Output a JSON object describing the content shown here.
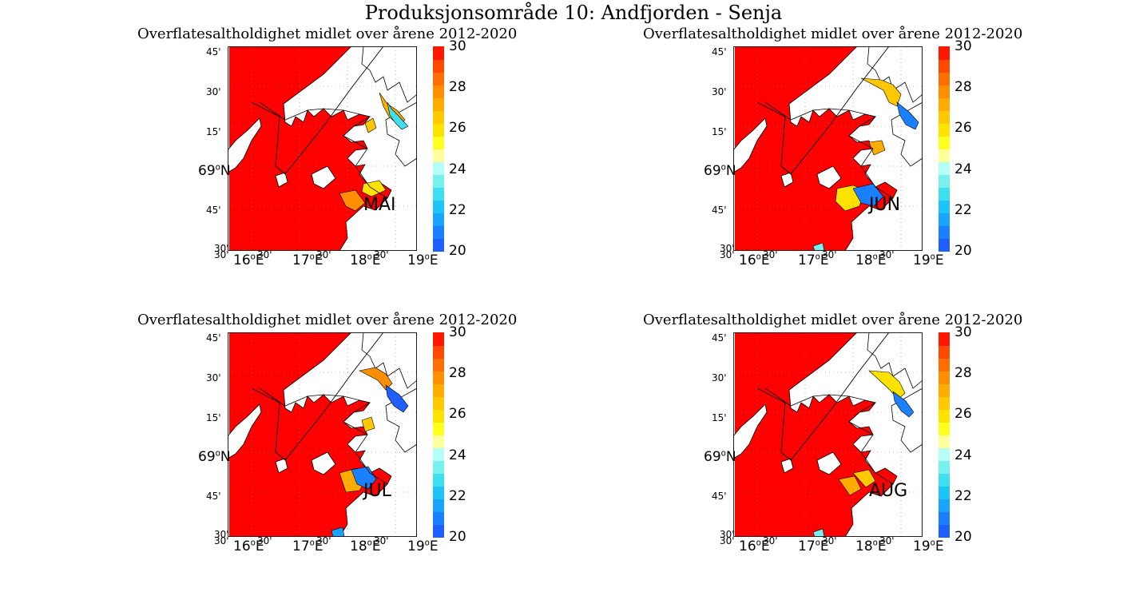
{
  "title": "Produksjonsområde 10: Andfjorden - Senja",
  "colors": {
    "sea_high": "#ff0000",
    "land": "#ffffff",
    "coast": "#000000",
    "colorbar": [
      "#1f5fff",
      "#1b80ff",
      "#18a4ff",
      "#1ec3f8",
      "#3fdff0",
      "#78f0ee",
      "#b4fff8",
      "#ffff9b",
      "#ffff20",
      "#ffe300",
      "#ffc800",
      "#ffac00",
      "#ff8f00",
      "#ff6e00",
      "#ff4800",
      "#ff1800"
    ]
  },
  "colorbar_ticks": [
    "30",
    "28",
    "26",
    "24",
    "22",
    "20"
  ],
  "colorbar_range": [
    20,
    30
  ],
  "lat_labels": {
    "minor_45_top": "45'",
    "minor_30": "30'",
    "minor_15": "15'",
    "major_69": "69",
    "major_69_suffix": "N",
    "minor_45_bottom": "45'",
    "minor_30_bottom": "30'"
  },
  "lon_labels": {
    "minor_a": "30'",
    "major_16": "16",
    "minor_b": "30'",
    "major_17": "17",
    "minor_c": "30'",
    "major_18": "18",
    "minor_d": "30'",
    "major_19": "19",
    "suffix": "E"
  },
  "degree_symbol": "o",
  "panels": [
    {
      "name": "panel-mai",
      "title": "Overflatesaltholdighet midlet over årene 2012-2020",
      "month": "MAI"
    },
    {
      "name": "panel-jun",
      "title": "Overflatesaltholdighet midlet over årene 2012-2020",
      "month": "JUN"
    },
    {
      "name": "panel-jul",
      "title": "Overflatesaltholdighet midlet over årene 2012-2020",
      "month": "JUL"
    },
    {
      "name": "panel-aug",
      "title": "Overflatesaltholdighet midlet over årene 2012-2020",
      "month": "AUG"
    }
  ]
}
